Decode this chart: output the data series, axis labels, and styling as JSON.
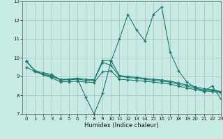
{
  "xlabel": "Humidex (Indice chaleur)",
  "background_color": "#c8eae5",
  "grid_color": "#b0b0b0",
  "line_color": "#1a7a6e",
  "xlim": [
    -0.5,
    23
  ],
  "ylim": [
    7,
    13
  ],
  "xticks": [
    0,
    1,
    2,
    3,
    4,
    5,
    6,
    7,
    8,
    9,
    10,
    11,
    12,
    13,
    14,
    15,
    16,
    17,
    18,
    19,
    20,
    21,
    22,
    23
  ],
  "yticks": [
    7,
    8,
    9,
    10,
    11,
    12,
    13
  ],
  "line1_x": [
    0,
    1,
    2,
    3,
    4,
    5,
    6,
    7,
    8,
    9,
    10,
    11,
    12,
    13,
    14,
    15,
    16,
    17,
    18,
    19,
    20,
    21,
    22,
    23
  ],
  "line1_y": [
    9.8,
    9.3,
    9.2,
    9.1,
    8.8,
    8.85,
    8.9,
    7.9,
    7.0,
    8.1,
    9.8,
    11.0,
    12.3,
    11.5,
    10.9,
    12.3,
    12.7,
    10.3,
    9.3,
    8.7,
    8.4,
    8.2,
    8.5,
    7.8
  ],
  "line2_x": [
    0,
    1,
    2,
    3,
    4,
    5,
    6,
    7,
    8,
    9,
    10,
    11,
    12,
    13,
    14,
    15,
    16,
    17,
    18,
    19,
    20,
    21,
    22,
    23
  ],
  "line2_y": [
    9.8,
    9.3,
    9.1,
    9.05,
    8.85,
    8.85,
    8.9,
    8.85,
    8.82,
    9.85,
    9.85,
    9.05,
    9.0,
    8.95,
    8.9,
    8.85,
    8.82,
    8.75,
    8.65,
    8.55,
    8.45,
    8.35,
    8.3,
    8.2
  ],
  "line3_x": [
    0,
    1,
    2,
    3,
    4,
    5,
    6,
    7,
    8,
    9,
    10,
    11,
    12,
    13,
    14,
    15,
    16,
    17,
    18,
    19,
    20,
    21,
    22,
    23
  ],
  "line3_y": [
    9.8,
    9.3,
    9.1,
    9.0,
    8.82,
    8.82,
    8.85,
    8.8,
    8.78,
    9.75,
    9.6,
    9.0,
    8.95,
    8.9,
    8.85,
    8.8,
    8.75,
    8.7,
    8.58,
    8.48,
    8.38,
    8.28,
    8.25,
    8.18
  ],
  "line4_x": [
    0,
    1,
    2,
    3,
    4,
    5,
    6,
    7,
    8,
    9,
    10,
    11,
    12,
    13,
    14,
    15,
    16,
    17,
    18,
    19,
    20,
    21,
    22,
    23
  ],
  "line4_y": [
    9.5,
    9.25,
    9.1,
    8.92,
    8.72,
    8.72,
    8.75,
    8.7,
    8.68,
    9.25,
    9.3,
    8.85,
    8.82,
    8.78,
    8.75,
    8.7,
    8.65,
    8.6,
    8.48,
    8.38,
    8.3,
    8.22,
    8.2,
    8.12
  ]
}
